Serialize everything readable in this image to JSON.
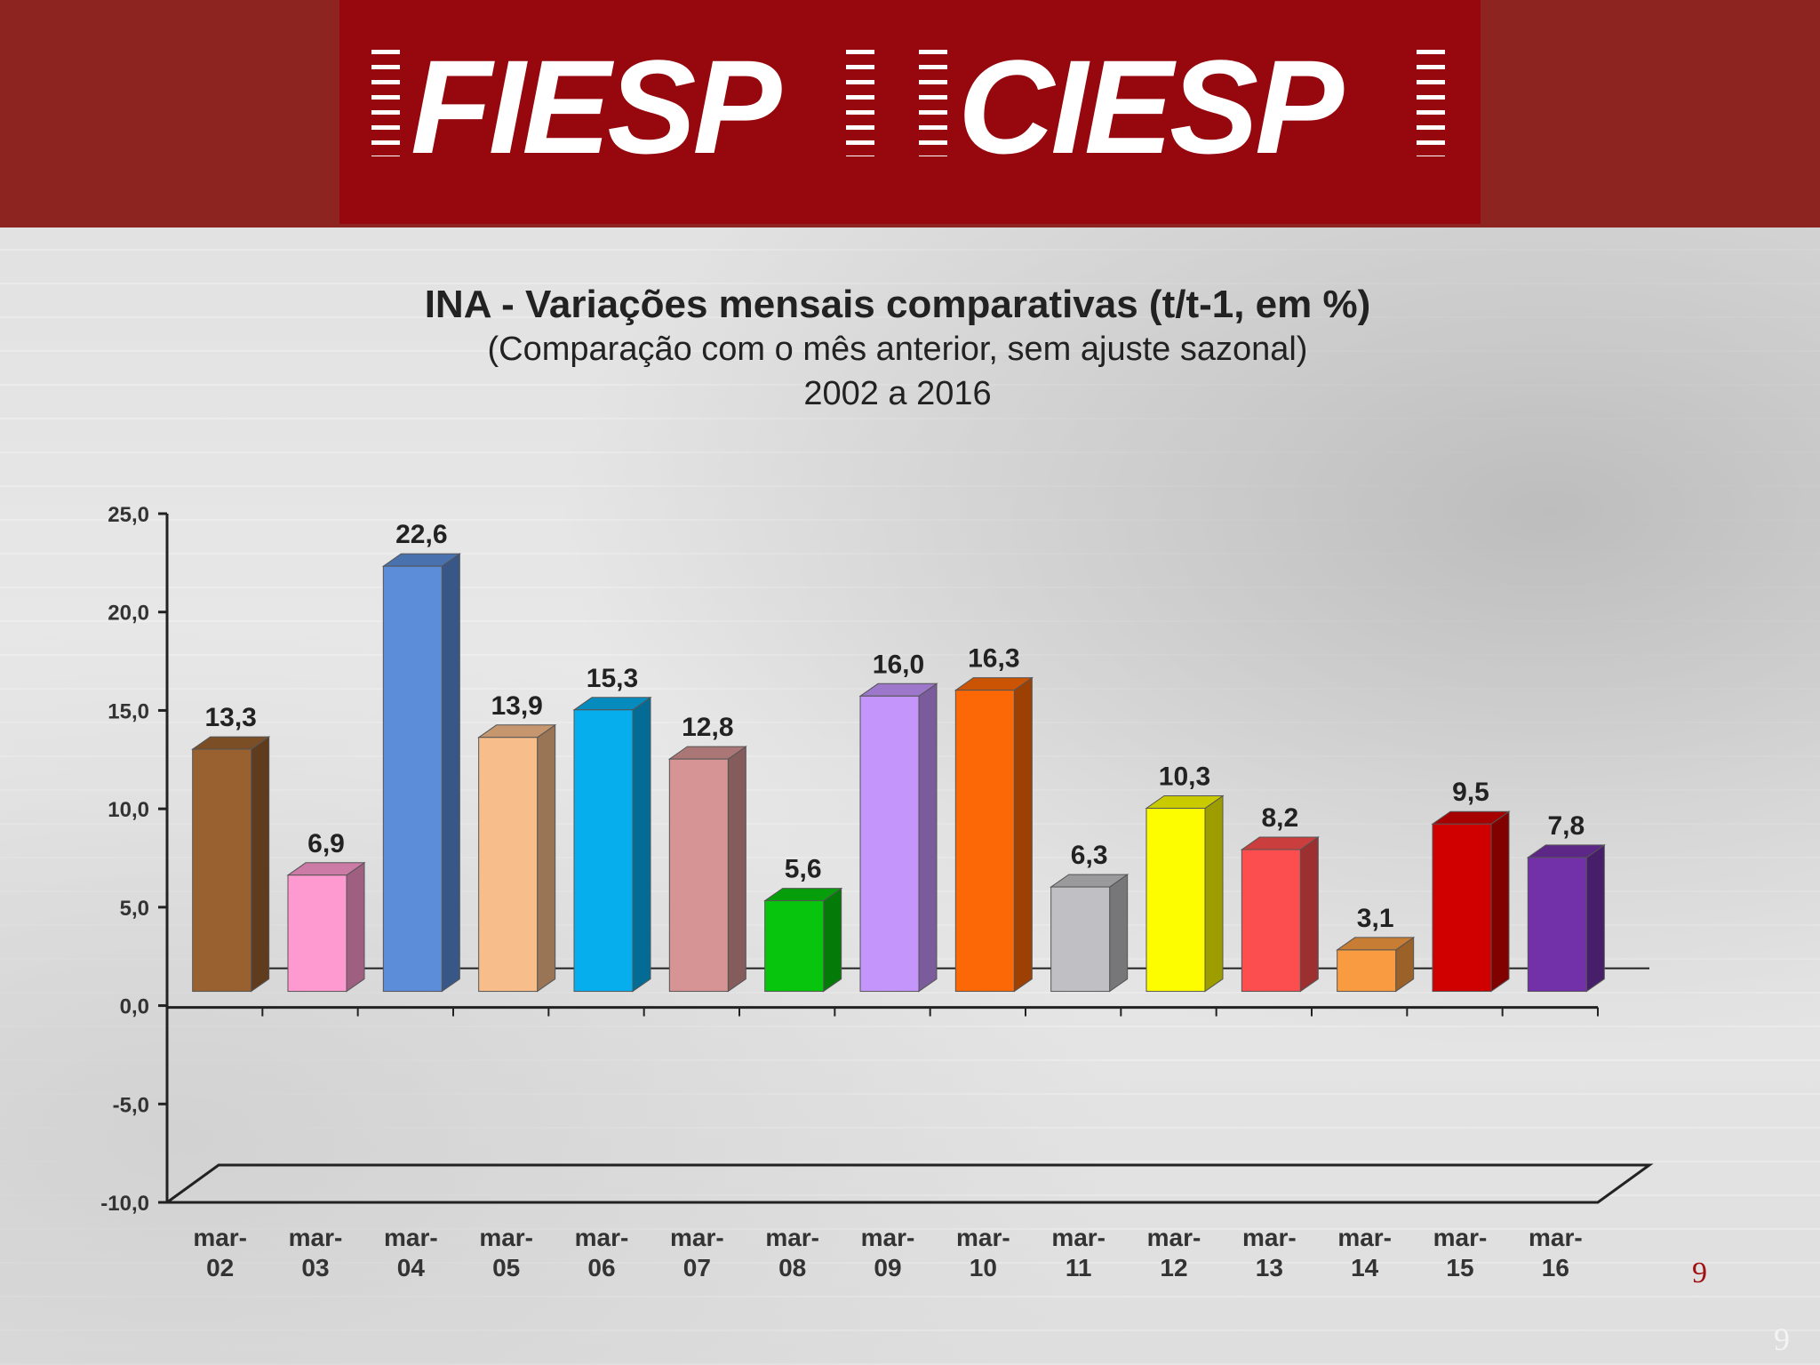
{
  "header": {
    "logo_left": "FIESP",
    "logo_right": "CIESP"
  },
  "colors": {
    "header_bg": "#8d2420",
    "logo_bg": "#96070e",
    "page_number": "#a01010"
  },
  "chart_data": {
    "type": "bar",
    "title": "INA - Variações mensais comparativas (t/t-1, em %)",
    "subtitle": "(Comparação com o mês anterior, sem ajuste sazonal)",
    "period": "2002 a 2016",
    "categories": [
      [
        "mar-",
        "02"
      ],
      [
        "mar-",
        "03"
      ],
      [
        "mar-",
        "04"
      ],
      [
        "mar-",
        "05"
      ],
      [
        "mar-",
        "06"
      ],
      [
        "mar-",
        "07"
      ],
      [
        "mar-",
        "08"
      ],
      [
        "mar-",
        "09"
      ],
      [
        "mar-",
        "10"
      ],
      [
        "mar-",
        "11"
      ],
      [
        "mar-",
        "12"
      ],
      [
        "mar-",
        "13"
      ],
      [
        "mar-",
        "14"
      ],
      [
        "mar-",
        "15"
      ],
      [
        "mar-",
        "16"
      ]
    ],
    "values": [
      13.3,
      6.9,
      22.6,
      13.9,
      15.3,
      12.8,
      5.6,
      16.0,
      16.3,
      6.3,
      10.3,
      8.2,
      3.1,
      9.5,
      7.8
    ],
    "labels": [
      "13,3",
      "6,9",
      "22,6",
      "13,9",
      "15,3",
      "12,8",
      "5,6",
      "16,0",
      "16,3",
      "6,3",
      "10,3",
      "8,2",
      "3,1",
      "9,5",
      "7,8"
    ],
    "colors": [
      "#9a6130",
      "#ff9ad0",
      "#5b8dd9",
      "#f7bd8a",
      "#07aeee",
      "#d69494",
      "#07c50d",
      "#c495fb",
      "#fc6805",
      "#c0c0c4",
      "#fdfd00",
      "#fc4e4e",
      "#f99c41",
      "#d00000",
      "#7331a9"
    ],
    "yticks": [
      "25,0",
      "20,0",
      "15,0",
      "10,0",
      "5,0",
      "0,0",
      "-5,0",
      "-10,0"
    ],
    "ylim": [
      -10,
      25
    ],
    "xlabel": "",
    "ylabel": "",
    "grid": false
  },
  "page_numbers": {
    "inner": "9",
    "corner": "9"
  }
}
